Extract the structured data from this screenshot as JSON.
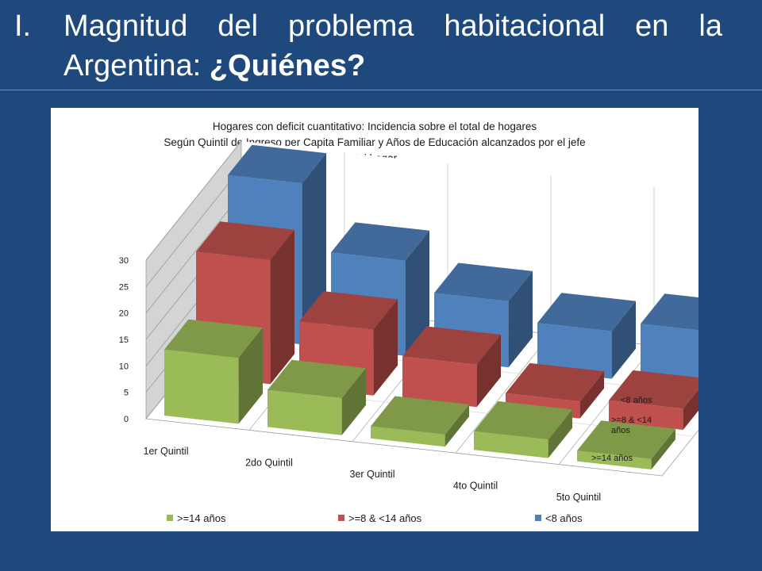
{
  "slide": {
    "number": "I.",
    "title_words": [
      "Magnitud",
      "del",
      "problema",
      "habitacional",
      "en",
      "la"
    ],
    "title_line2_normal": "Argentina: ",
    "title_line2_bold": "¿Quiénes?"
  },
  "chart_data": {
    "type": "bar",
    "variant": "3d-clustered-depth",
    "title": [
      "Hogares con deficit cuantitativo: Incidencia sobre el total de hogares",
      "Según Quintil de Ingreso per Capita Familiar y Años de Educación alcanzados por el jefe",
      "del hogar"
    ],
    "categories": [
      "1er Quintil",
      "2do Quintil",
      "3er Quintil",
      "4to Quintil",
      "5to Quintil"
    ],
    "yticks": [
      "0",
      "5",
      "10",
      "15",
      "20",
      "25",
      "30"
    ],
    "ylim": [
      0,
      30
    ],
    "grid": true,
    "legend_position": "bottom",
    "series": [
      {
        "name": ">=14 años",
        "color": "#9bbb59",
        "values": [
          12.5,
          7,
          2.3,
          3.5,
          2
        ]
      },
      {
        "name": ">=8 & <14 años",
        "color": "#c0504d",
        "values": [
          23.5,
          12.5,
          8,
          3.2,
          4
        ]
      },
      {
        "name": "<8 años",
        "color": "#4f81bd",
        "values": [
          30.5,
          18,
          12.5,
          9,
          11
        ]
      }
    ],
    "depth_labels": [
      [
        "<8 años"
      ],
      [
        ">=8 & <14",
        "años"
      ],
      [
        ">=14 años"
      ]
    ]
  }
}
